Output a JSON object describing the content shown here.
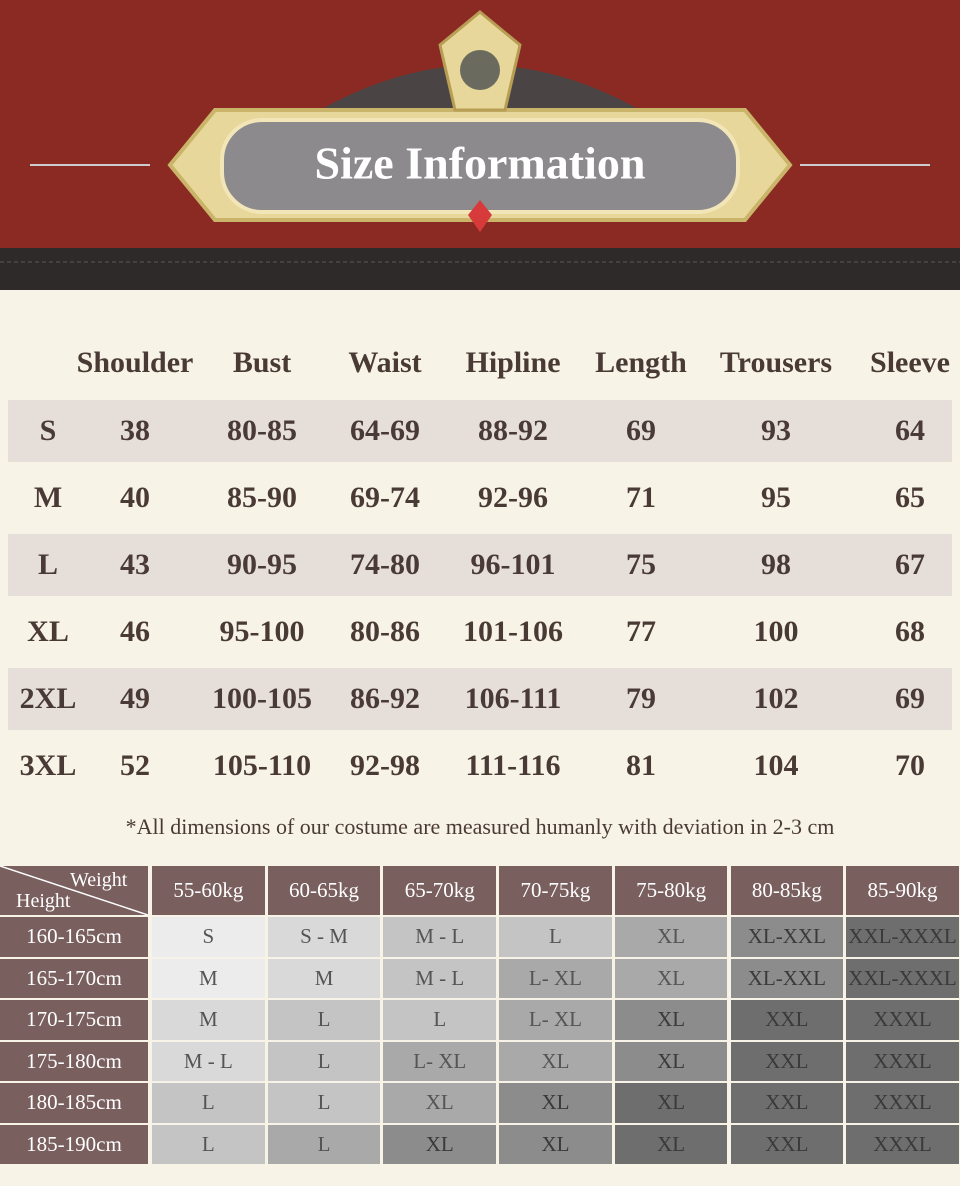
{
  "title": "Size Information",
  "size_table": {
    "headers": [
      "Shoulder",
      "Bust",
      "Waist",
      "Hipline",
      "Length",
      "Trousers",
      "Sleeve"
    ],
    "rows": [
      [
        "S",
        "38",
        "80-85",
        "64-69",
        "88-92",
        "69",
        "93",
        "64"
      ],
      [
        "M",
        "40",
        "85-90",
        "69-74",
        "92-96",
        "71",
        "95",
        "65"
      ],
      [
        "L",
        "43",
        "90-95",
        "74-80",
        "96-101",
        "75",
        "98",
        "67"
      ],
      [
        "XL",
        "46",
        "95-100",
        "80-86",
        "101-106",
        "77",
        "100",
        "68"
      ],
      [
        "2XL",
        "49",
        "100-105",
        "86-92",
        "106-111",
        "79",
        "102",
        "69"
      ],
      [
        "3XL",
        "52",
        "105-110",
        "92-98",
        "111-116",
        "81",
        "104",
        "70"
      ]
    ]
  },
  "note": "*All dimensions of our costume are measured humanly with deviation in 2-3 cm",
  "weight_table": {
    "corner_weight": "Weight",
    "corner_height": "Height",
    "weights": [
      "55-60kg",
      "60-65kg",
      "65-70kg",
      "70-75kg",
      "75-80kg",
      "80-85kg",
      "85-90kg"
    ],
    "rows": [
      {
        "height": "160-165cm",
        "cells": [
          "S",
          "S - M",
          "M - L",
          "L",
          "XL",
          "XL-XXL",
          "XXL-XXXL"
        ]
      },
      {
        "height": "165-170cm",
        "cells": [
          "M",
          "M",
          "M - L",
          "L- XL",
          "XL",
          "XL-XXL",
          "XXL-XXXL"
        ]
      },
      {
        "height": "170-175cm",
        "cells": [
          "M",
          "L",
          "L",
          "L- XL",
          "XL",
          "XXL",
          "XXXL"
        ]
      },
      {
        "height": "175-180cm",
        "cells": [
          "M - L",
          "L",
          "L- XL",
          "XL",
          "XL",
          "XXL",
          "XXXL"
        ]
      },
      {
        "height": "180-185cm",
        "cells": [
          "L",
          "L",
          "XL",
          "XL",
          "XL",
          "XXL",
          "XXXL"
        ]
      },
      {
        "height": "185-190cm",
        "cells": [
          "L",
          "L",
          "XL",
          "XL",
          "XL",
          "XXL",
          "XXXL"
        ]
      }
    ]
  }
}
